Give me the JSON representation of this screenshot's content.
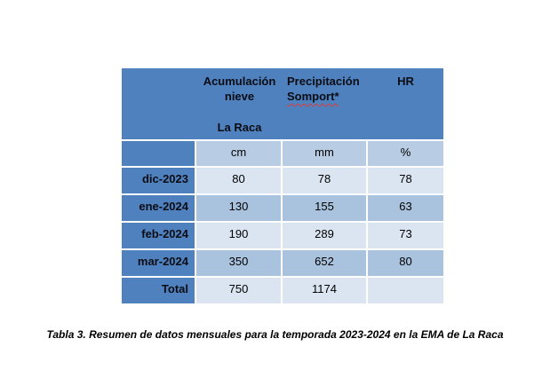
{
  "table": {
    "header": {
      "snow_col": {
        "line1": "Acumulación",
        "line2": "nieve",
        "line3": "La Raca"
      },
      "precip_col": {
        "line1": "Precipitación",
        "line2": "Somport*"
      },
      "hr_col": "HR"
    },
    "units": {
      "snow": "cm",
      "precip": "mm",
      "hr": "%"
    },
    "rows": [
      {
        "label": "dic-2023",
        "snow": "80",
        "precip": "78",
        "hr": "78"
      },
      {
        "label": "ene-2024",
        "snow": "130",
        "precip": "155",
        "hr": "63"
      },
      {
        "label": "feb-2024",
        "snow": "190",
        "precip": "289",
        "hr": "73"
      },
      {
        "label": "mar-2024",
        "snow": "350",
        "precip": "652",
        "hr": "80"
      },
      {
        "label": "Total",
        "snow": "750",
        "precip": "1174",
        "hr": ""
      }
    ],
    "colors": {
      "header_blue": "#4e81bd",
      "band_light": "#dbe5f1",
      "band_medium": "#a9c2de",
      "units_row": "#b8cce4",
      "spellcheck_red": "#e03b3b"
    }
  },
  "caption": "Tabla 3. Resumen de datos mensuales para la temporada 2023-2024 en la EMA de La Raca"
}
